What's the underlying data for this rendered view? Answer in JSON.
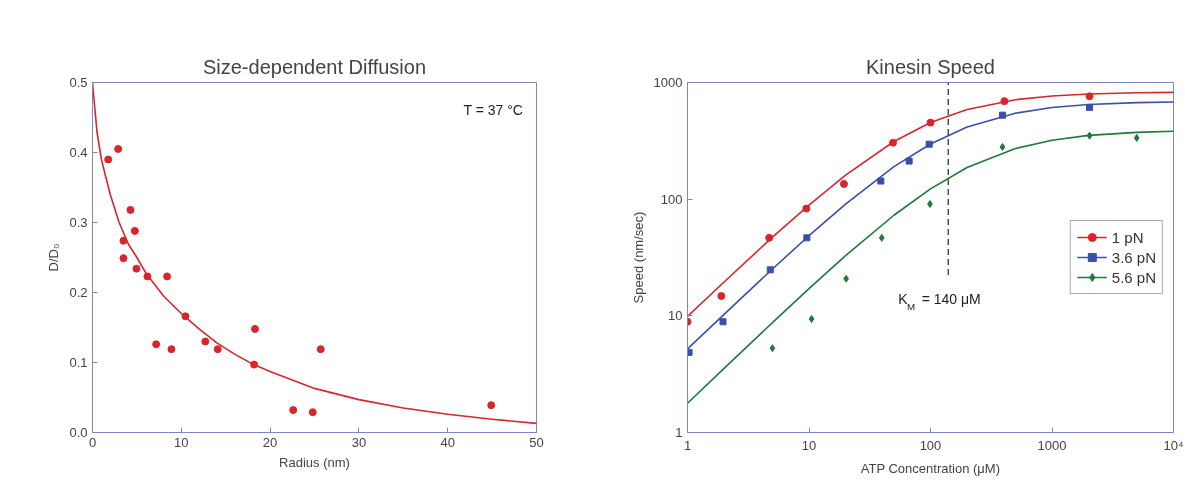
{
  "chart_data": [
    {
      "type": "scatter",
      "title": "Size-dependent Diffusion",
      "xlabel": "Radius (nm)",
      "ylabel": "D/D₀",
      "grid": false,
      "legend": false,
      "xlim": [
        0,
        50
      ],
      "ylim": [
        0,
        0.5
      ],
      "xticks": [
        0,
        10,
        20,
        30,
        40,
        50
      ],
      "yticks": [
        {
          "value": 0,
          "label": "0.0"
        },
        0.1,
        0.2,
        0.3,
        0.4,
        0.5
      ],
      "annotations": [
        "T = 37 °C"
      ],
      "series": [
        {
          "type": "scatter",
          "color": "#d7262c",
          "marker": "circle",
          "x": [
            1.77,
            2.89,
            4.28,
            4.77,
            3.49,
            3.49,
            4.95,
            6.19,
            8.4,
            10.47,
            7.17,
            8.89,
            12.7,
            14.1,
            18.3,
            18.2,
            25.7,
            22.6,
            24.8,
            44.9
          ],
          "values": [
            0.39,
            0.405,
            0.318,
            0.288,
            0.274,
            0.249,
            0.234,
            0.223,
            0.223,
            0.166,
            0.126,
            0.119,
            0.13,
            0.119,
            0.148,
            0.097,
            0.119,
            0.032,
            0.029,
            0.039
          ]
        },
        {
          "type": "line",
          "color": "#d7262c",
          "x": [
            0,
            0.5,
            1,
            2,
            3,
            4,
            5,
            6,
            8,
            10,
            12,
            14,
            16,
            18,
            20,
            25,
            30,
            35,
            40,
            45,
            50
          ],
          "values": [
            0.5,
            0.43,
            0.39,
            0.34,
            0.3,
            0.27,
            0.25,
            0.228,
            0.195,
            0.17,
            0.148,
            0.128,
            0.112,
            0.098,
            0.087,
            0.063,
            0.047,
            0.035,
            0.026,
            0.019,
            0.013
          ]
        }
      ]
    },
    {
      "type": "scatter",
      "title": "Kinesin Speed",
      "xlabel": "ATP Concentration (μM)",
      "ylabel": "Speed (nm/sec)",
      "log": "xy",
      "grid": false,
      "legend": "right",
      "xlim": [
        1,
        10000
      ],
      "ylim": [
        1,
        1000
      ],
      "xticks": [
        1,
        10,
        100,
        1000,
        {
          "value": 10000,
          "label": "10⁴"
        }
      ],
      "yticks": [
        1,
        10,
        100,
        1000
      ],
      "ref_lines": [
        {
          "axis": "x",
          "value": 140,
          "label": "K$_{M}$ = 140 μM",
          "color": "#333333",
          "line_style": "dashed"
        }
      ],
      "series": [
        {
          "type": "scatter",
          "name": "1 pN",
          "color": "#d7262c",
          "marker": "circle",
          "x": [
            1,
            1.9,
            4.7,
            9.5,
            19.4,
            49.2,
            100,
            406,
            2037
          ],
          "values": [
            8.9,
            14.8,
            46.6,
            83,
            135,
            305,
            453,
            692,
            762
          ]
        },
        {
          "type": "line",
          "color": "#d7262c",
          "x": [
            1,
            2,
            5,
            10,
            20,
            50,
            100,
            200,
            500,
            1000,
            2000,
            5000,
            10000
          ],
          "values": [
            9.9,
            19.5,
            47.2,
            89,
            161,
            312,
            454,
            587,
            712,
            766,
            797,
            816,
            823
          ]
        },
        {
          "type": "scatter",
          "name": "3.6 pN",
          "color": "#3a4fa8",
          "marker": "square",
          "x": [
            1.03,
            1.96,
            4.8,
            9.6,
            39,
            66.7,
            97.5,
            391,
            2037
          ],
          "values": [
            4.86,
            8.9,
            24.8,
            46.6,
            143,
            212,
            296,
            525,
            612
          ]
        },
        {
          "type": "line",
          "color": "#3a4fa8",
          "x": [
            1,
            2,
            5,
            10,
            20,
            50,
            100,
            200,
            500,
            1000,
            2000,
            5000,
            10000
          ],
          "values": [
            5.2,
            10.3,
            25.2,
            48.6,
            90.8,
            190,
            297,
            416,
            546,
            610,
            647,
            672,
            681
          ]
        },
        {
          "type": "scatter",
          "name": "5.6 pN",
          "color": "#1e7a3a",
          "marker": "diamond",
          "x": [
            5.0,
            10.5,
            20.2,
            39.7,
            99,
            391,
            2037,
            4980
          ],
          "values": [
            5.28,
            9.4,
            20.8,
            46.6,
            90.8,
            280,
            350,
            335
          ]
        },
        {
          "type": "line",
          "color": "#1e7a3a",
          "x": [
            1,
            2,
            5,
            10,
            20,
            50,
            100,
            200,
            500,
            1000,
            2000,
            5000,
            10000
          ],
          "values": [
            1.78,
            3.55,
            8.74,
            17.1,
            32.8,
            72.8,
            122.6,
            186.6,
            271.6,
            320,
            352,
            373.7,
            381.7
          ]
        }
      ]
    }
  ]
}
